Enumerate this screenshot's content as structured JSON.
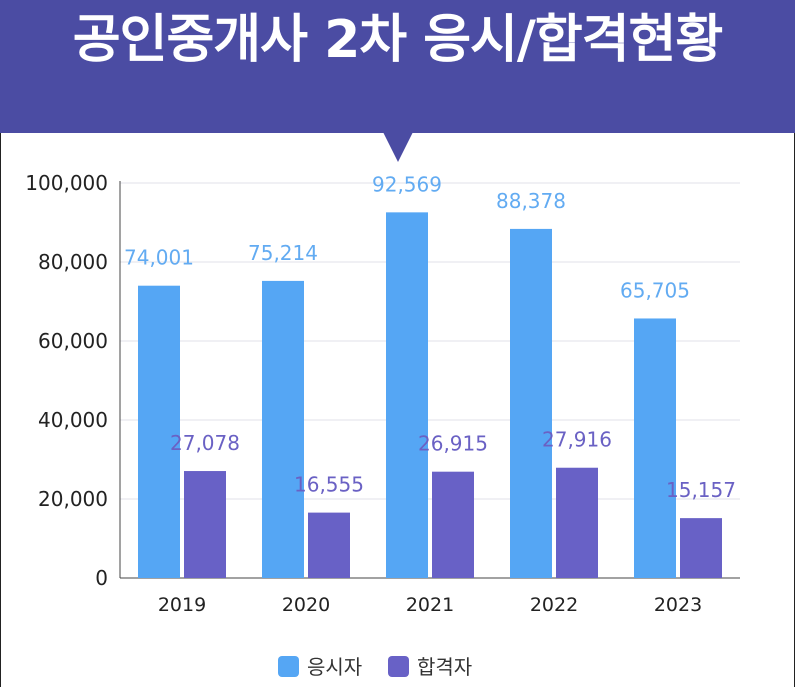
{
  "header": {
    "title": "공인중개사 2차 응시/합격현황"
  },
  "chart_data": {
    "type": "bar",
    "categories": [
      "2019",
      "2020",
      "2021",
      "2022",
      "2023"
    ],
    "series": [
      {
        "name": "응시자",
        "values": [
          74001,
          75214,
          92569,
          88378,
          65705
        ],
        "labels": [
          "74,001",
          "75,214",
          "92,569",
          "88,378",
          "65,705"
        ],
        "color": "#55a6f4",
        "label_color": "#62abf2"
      },
      {
        "name": "합격자",
        "values": [
          27078,
          16555,
          26915,
          27916,
          15157
        ],
        "labels": [
          "27,078",
          "16,555",
          "26,915",
          "27,916",
          "15,157"
        ],
        "color": "#6861c6",
        "label_color": "#6a61c4"
      }
    ],
    "yticks": [
      "0",
      "20,000",
      "40,000",
      "60,000",
      "80,000",
      "100,000"
    ],
    "ylim": [
      0,
      100000
    ],
    "grid": true,
    "legend": "bottom-center",
    "colors": {
      "banner": "#4b4ca3",
      "grid": "#e2e2e8",
      "axis": "#444444",
      "tick_text": "#222222"
    }
  }
}
